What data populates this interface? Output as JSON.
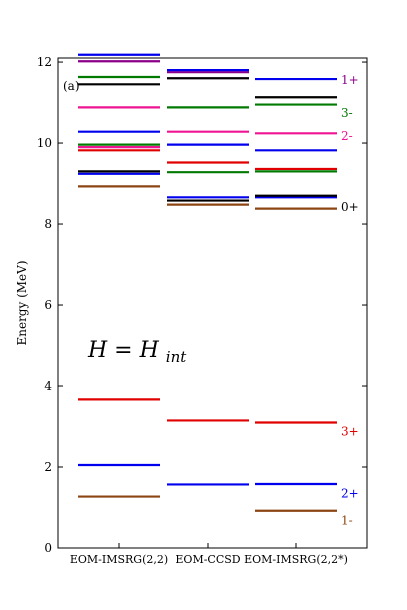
{
  "chart_data": {
    "type": "level-diagram",
    "ylabel": "Energy (MeV)",
    "ylim": [
      0,
      12.1
    ],
    "yticks": [
      "0",
      "2",
      "4",
      "6",
      "8",
      "10",
      "12"
    ],
    "panel_label": "(a)",
    "annotation": {
      "main": "H = H",
      "subscript": "int"
    },
    "colors": {
      "brown": "#8b4513",
      "blue": "#0000ee",
      "red": "#e00000",
      "black": "#000000",
      "green": "#007a00",
      "magenta": "#ee1493",
      "purple": "#8b008b"
    },
    "categories": [
      "EOM-IMSRG(2,2)",
      "EOM-CCSD",
      "EOM-IMSRG(2,2*)"
    ],
    "columns": [
      {
        "name": "EOM-IMSRG(2,2)",
        "levels": [
          {
            "energy": 1.27,
            "color": "brown"
          },
          {
            "energy": 2.05,
            "color": "blue"
          },
          {
            "energy": 3.67,
            "color": "red"
          },
          {
            "energy": 8.93,
            "color": "brown"
          },
          {
            "energy": 9.24,
            "color": "blue"
          },
          {
            "energy": 9.3,
            "color": "black"
          },
          {
            "energy": 9.82,
            "color": "red"
          },
          {
            "energy": 9.9,
            "color": "magenta"
          },
          {
            "energy": 9.96,
            "color": "green"
          },
          {
            "energy": 10.28,
            "color": "blue"
          },
          {
            "energy": 10.88,
            "color": "magenta"
          },
          {
            "energy": 11.45,
            "color": "black"
          },
          {
            "energy": 11.63,
            "color": "green"
          },
          {
            "energy": 12.02,
            "color": "purple"
          },
          {
            "energy": 12.18,
            "color": "blue"
          }
        ]
      },
      {
        "name": "EOM-CCSD",
        "levels": [
          {
            "energy": 1.57,
            "color": "blue"
          },
          {
            "energy": 3.15,
            "color": "red"
          },
          {
            "energy": 8.48,
            "color": "brown"
          },
          {
            "energy": 8.58,
            "color": "black"
          },
          {
            "energy": 8.66,
            "color": "blue"
          },
          {
            "energy": 9.28,
            "color": "green"
          },
          {
            "energy": 9.52,
            "color": "red"
          },
          {
            "energy": 9.96,
            "color": "blue"
          },
          {
            "energy": 10.28,
            "color": "magenta"
          },
          {
            "energy": 10.88,
            "color": "green"
          },
          {
            "energy": 11.6,
            "color": "black"
          },
          {
            "energy": 11.75,
            "color": "purple"
          },
          {
            "energy": 11.8,
            "color": "blue"
          }
        ]
      },
      {
        "name": "EOM-IMSRG(2,2*)",
        "levels": [
          {
            "energy": 0.92,
            "color": "brown"
          },
          {
            "energy": 1.58,
            "color": "blue"
          },
          {
            "energy": 3.1,
            "color": "red"
          },
          {
            "energy": 8.38,
            "color": "brown"
          },
          {
            "energy": 8.66,
            "color": "blue"
          },
          {
            "energy": 8.7,
            "color": "black"
          },
          {
            "energy": 9.3,
            "color": "green"
          },
          {
            "energy": 9.36,
            "color": "red"
          },
          {
            "energy": 9.82,
            "color": "blue"
          },
          {
            "energy": 10.24,
            "color": "magenta"
          },
          {
            "energy": 10.95,
            "color": "green"
          },
          {
            "energy": 11.13,
            "color": "black"
          },
          {
            "energy": 11.58,
            "color": "blue"
          }
        ],
        "labels": [
          {
            "text": "1-",
            "energy": 0.7,
            "color": "brown"
          },
          {
            "text": "2+",
            "energy": 1.37,
            "color": "blue"
          },
          {
            "text": "3+",
            "energy": 2.9,
            "color": "red"
          },
          {
            "text": "0+",
            "energy": 8.45,
            "color": "black"
          },
          {
            "text": "2-",
            "energy": 10.2,
            "color": "magenta"
          },
          {
            "text": "3-",
            "energy": 10.77,
            "color": "green"
          },
          {
            "text": "1+",
            "energy": 11.58,
            "color": "purple"
          }
        ]
      }
    ]
  }
}
